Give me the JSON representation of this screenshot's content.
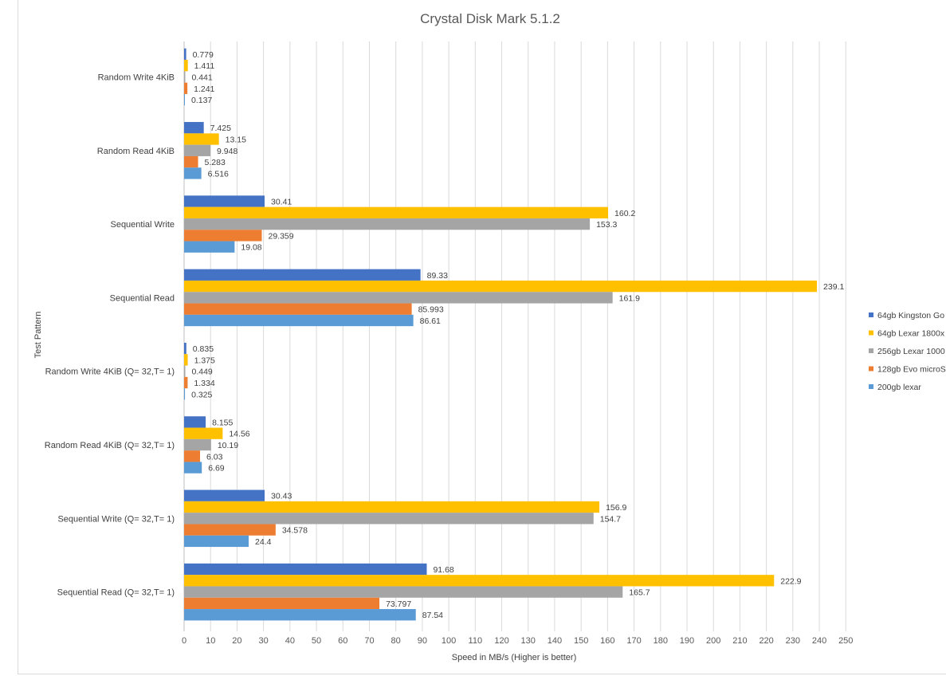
{
  "chart_data": {
    "type": "bar",
    "orientation": "horizontal",
    "title": "Crystal Disk Mark 5.1.2",
    "xlabel": "Speed  in MB/s (Higher is better)",
    "ylabel": "Test Pattern",
    "xlim": [
      0,
      250
    ],
    "xticks": [
      0,
      10,
      20,
      30,
      40,
      50,
      60,
      70,
      80,
      90,
      100,
      110,
      120,
      130,
      140,
      150,
      160,
      170,
      180,
      190,
      200,
      210,
      220,
      230,
      240,
      250
    ],
    "grid": "vertical",
    "legend_position": "right",
    "categories": [
      "Random Write 4KiB",
      "Random Read 4KiB",
      "Sequential Write",
      "Sequential Read",
      "Random Write 4KiB (Q= 32,T= 1)",
      "Random Read 4KiB (Q= 32,T= 1)",
      "Sequential Write (Q= 32,T= 1)",
      "Sequential Read (Q= 32,T= 1)"
    ],
    "series": [
      {
        "name": "64gb Kingston Go",
        "color": "#4472c4",
        "values": [
          0.779,
          7.425,
          30.41,
          89.33,
          0.835,
          8.155,
          30.43,
          91.68
        ],
        "labels": [
          "0.779",
          "7.425",
          "30.41",
          "89.33",
          "0.835",
          "8.155",
          "30.43",
          "91.68"
        ]
      },
      {
        "name": "64gb Lexar 1800x",
        "color": "#ffc000",
        "values": [
          1.411,
          13.15,
          160.2,
          239.1,
          1.375,
          14.56,
          156.9,
          222.9
        ],
        "labels": [
          "1.411",
          "13.15",
          "160.2",
          "239.1",
          "1.375",
          "14.56",
          "156.9",
          "222.9"
        ]
      },
      {
        "name": "256gb Lexar 1000",
        "color": "#a5a5a5",
        "values": [
          0.441,
          9.948,
          153.3,
          161.9,
          0.449,
          10.19,
          154.7,
          165.7
        ],
        "labels": [
          "0.441",
          "9.948",
          "153.3",
          "161.9",
          "0.449",
          "10.19",
          "154.7",
          "165.7"
        ]
      },
      {
        "name": "128gb Evo microS",
        "color": "#ed7d31",
        "values": [
          1.241,
          5.283,
          29.359,
          85.993,
          1.334,
          6.03,
          34.578,
          73.797
        ],
        "labels": [
          "1.241",
          "5.283",
          "29.359",
          "85.993",
          "1.334",
          "6.03",
          "34.578",
          "73.797"
        ]
      },
      {
        "name": "200gb lexar",
        "color": "#5b9bd5",
        "values": [
          0.137,
          6.516,
          19.08,
          86.61,
          0.325,
          6.69,
          24.4,
          87.54
        ],
        "labels": [
          "0.137",
          "6.516",
          "19.08",
          "86.61",
          "0.325",
          "6.69",
          "24.4",
          "87.54"
        ]
      }
    ]
  }
}
